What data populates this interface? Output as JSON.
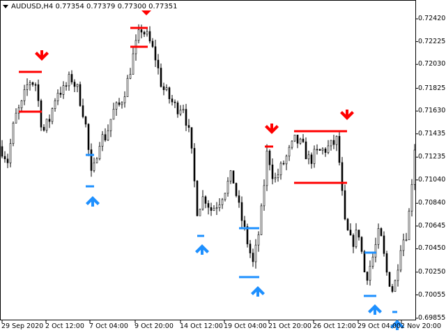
{
  "title": {
    "symbol": "AUDUSD,H4",
    "open": "0.77354",
    "high": "0.77379",
    "low": "0.77300",
    "close": "0.77351"
  },
  "colors": {
    "bull_bear_candle": "#000000",
    "sell_signal": "#ff0000",
    "buy_signal": "#1e90ff",
    "background": "#ffffff"
  },
  "y_axis": [
    "0.72420",
    "0.72225",
    "0.72030",
    "0.71825",
    "0.71630",
    "0.71435",
    "0.71235",
    "0.71040",
    "0.70840",
    "0.70645",
    "0.70450",
    "0.70250",
    "0.70055",
    "0.69855"
  ],
  "x_axis": [
    "29 Sep 2020",
    "2 Oct 12:00",
    "7 Oct 04:00",
    "9 Oct 20:00",
    "14 Oct 12:00",
    "19 Oct 04:00",
    "21 Oct 20:00",
    "26 Oct 12:00",
    "29 Oct 04:00",
    "2 Nov 20:00"
  ],
  "price_path": [
    0.71326,
    0.71206,
    0.71565,
    0.71684,
    0.71894,
    0.71864,
    0.71445,
    0.71565,
    0.71804,
    0.71804,
    0.71924,
    0.71804,
    0.71565,
    0.71027,
    0.71385,
    0.71415,
    0.71625,
    0.71684,
    0.71864,
    0.72133,
    0.72342,
    0.72253,
    0.72103,
    0.71834,
    0.71744,
    0.71655,
    0.71684,
    0.71385,
    0.70787,
    0.70907,
    0.70787,
    0.70847,
    0.70967,
    0.71086,
    0.70787,
    0.70548,
    0.70309,
    0.70668,
    0.71296,
    0.71027,
    0.71146,
    0.71266,
    0.71385,
    0.71326,
    0.71206,
    0.71266,
    0.71296,
    0.71326,
    0.71385,
    0.70668,
    0.70488,
    0.70608,
    0.7019,
    0.70369,
    0.70608,
    0.70249,
    0.7007,
    0.70488,
    0.70608,
    0.71326
  ],
  "signals": {
    "sell": 4,
    "buy": 5
  }
}
